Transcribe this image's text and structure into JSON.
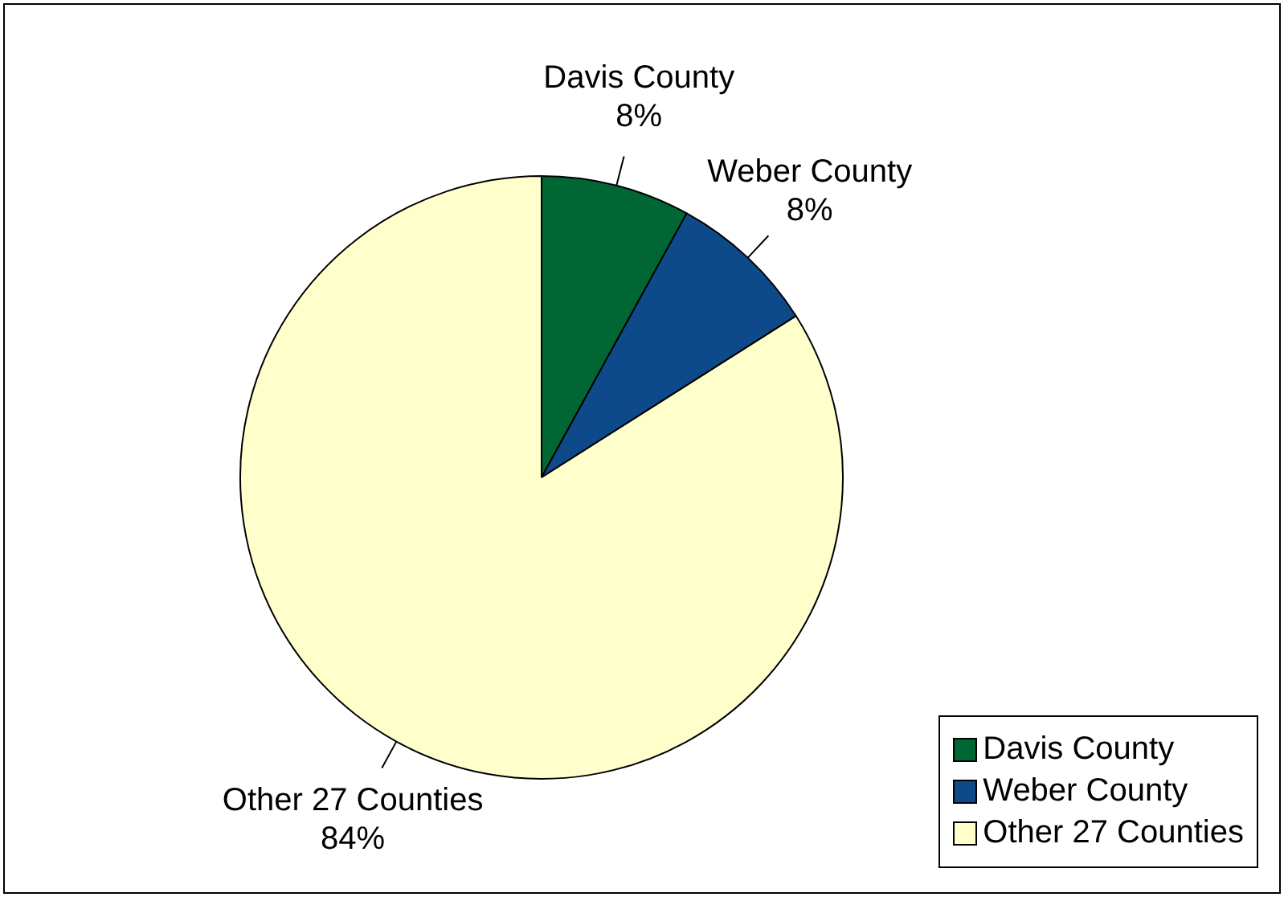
{
  "chart_data": {
    "type": "pie",
    "categories": [
      "Davis County",
      "Weber County",
      "Other 27 Counties"
    ],
    "values": [
      8,
      8,
      84
    ],
    "colors": [
      "#006633",
      "#0e4a8a",
      "#ffffcc"
    ],
    "value_labels": [
      "8%",
      "8%",
      "84%"
    ],
    "legend": "bottom right"
  }
}
